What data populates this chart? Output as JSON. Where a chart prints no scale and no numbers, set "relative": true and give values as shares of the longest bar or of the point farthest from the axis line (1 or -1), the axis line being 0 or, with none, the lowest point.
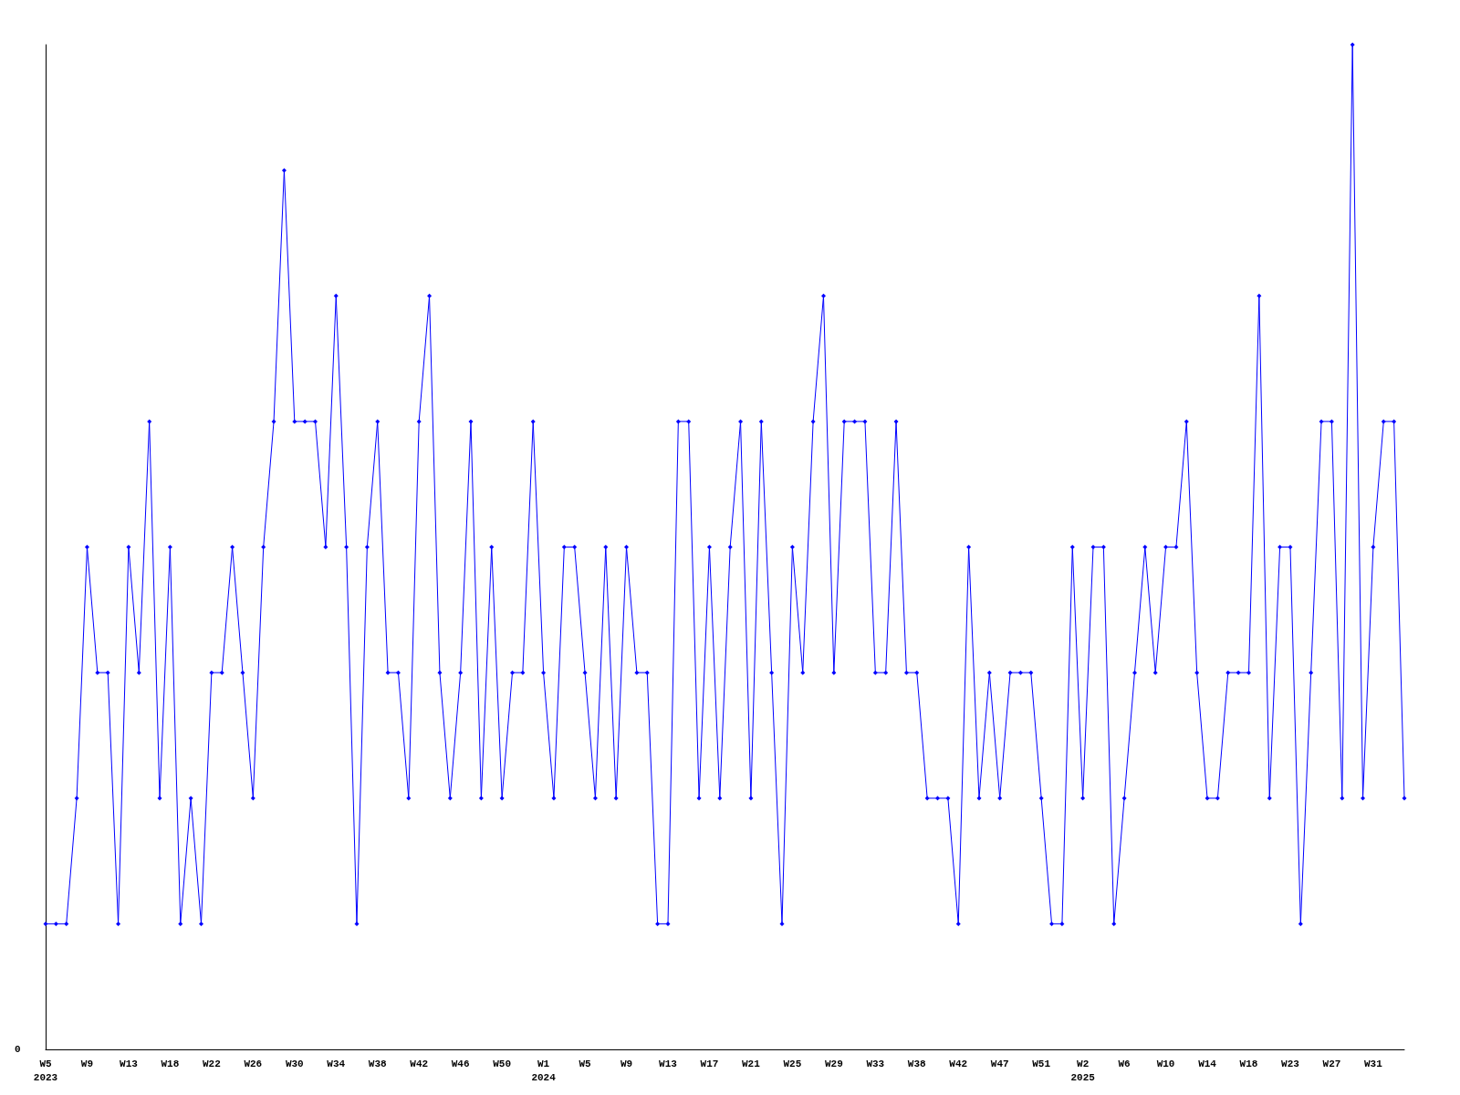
{
  "chart_data": {
    "type": "line",
    "relative": true,
    "annotations": [
      "0"
    ],
    "marker": "diamond",
    "line_style": "solid",
    "grid": false,
    "categories": [
      "W5\n2023",
      null,
      null,
      null,
      "W9",
      null,
      null,
      null,
      "W13",
      null,
      null,
      null,
      "W18",
      null,
      null,
      null,
      "W22",
      null,
      null,
      null,
      "W26",
      null,
      null,
      null,
      "W30",
      null,
      null,
      null,
      "W34",
      null,
      null,
      null,
      "W38",
      null,
      null,
      null,
      "W42",
      null,
      null,
      null,
      "W46",
      null,
      null,
      null,
      "W50",
      null,
      null,
      null,
      "W1\n2024",
      null,
      null,
      null,
      "W5",
      null,
      null,
      null,
      "W9",
      null,
      null,
      null,
      "W13",
      null,
      null,
      null,
      "W17",
      null,
      null,
      null,
      "W21",
      null,
      null,
      null,
      "W25",
      null,
      null,
      null,
      "W29",
      null,
      null,
      null,
      "W33",
      null,
      null,
      null,
      "W38",
      null,
      null,
      null,
      "W42",
      null,
      null,
      null,
      "W47",
      null,
      null,
      null,
      "W51",
      null,
      null,
      null,
      "W2\n2025",
      null,
      null,
      null,
      "W6",
      null,
      null,
      null,
      "W10",
      null,
      null,
      null,
      "W14",
      null,
      null,
      null,
      "W18",
      null,
      null,
      null,
      "W23",
      null,
      null,
      null,
      "W27",
      null,
      null,
      null,
      "W31",
      null,
      null,
      null
    ],
    "series": [
      {
        "color": "#0000ff",
        "values": [
          0.125,
          0.125,
          0.125,
          0.25,
          0.5,
          0.375,
          0.375,
          0.125,
          0.5,
          0.375,
          0.625,
          0.25,
          0.5,
          0.125,
          0.25,
          0.125,
          0.375,
          0.375,
          0.5,
          0.375,
          0.25,
          0.5,
          0.625,
          0.875,
          0.625,
          0.625,
          0.625,
          0.5,
          0.75,
          0.5,
          0.125,
          0.5,
          0.625,
          0.375,
          0.375,
          0.25,
          0.625,
          0.75,
          0.375,
          0.25,
          0.375,
          0.625,
          0.25,
          0.5,
          0.25,
          0.375,
          0.375,
          0.625,
          0.375,
          0.25,
          0.5,
          0.5,
          0.375,
          0.25,
          0.5,
          0.25,
          0.5,
          0.375,
          0.375,
          0.125,
          0.125,
          0.625,
          0.625,
          0.25,
          0.5,
          0.25,
          0.5,
          0.625,
          0.25,
          0.625,
          0.375,
          0.125,
          0.5,
          0.375,
          0.625,
          0.75,
          0.375,
          0.625,
          0.625,
          0.625,
          0.375,
          0.375,
          0.625,
          0.375,
          0.375,
          0.25,
          0.25,
          0.25,
          0.125,
          0.5,
          0.25,
          0.375,
          0.25,
          0.375,
          0.375,
          0.375,
          0.25,
          0.125,
          0.125,
          0.5,
          0.25,
          0.5,
          0.5,
          0.125,
          0.25,
          0.375,
          0.5,
          0.375,
          0.5,
          0.5,
          0.625,
          0.375,
          0.25,
          0.25,
          0.375,
          0.375,
          0.375,
          0.75,
          0.25,
          0.5,
          0.5,
          0.125,
          0.375,
          0.625,
          0.625,
          0.25,
          1,
          0.25,
          0.5,
          0.625,
          0.625,
          0.25
        ]
      }
    ]
  }
}
